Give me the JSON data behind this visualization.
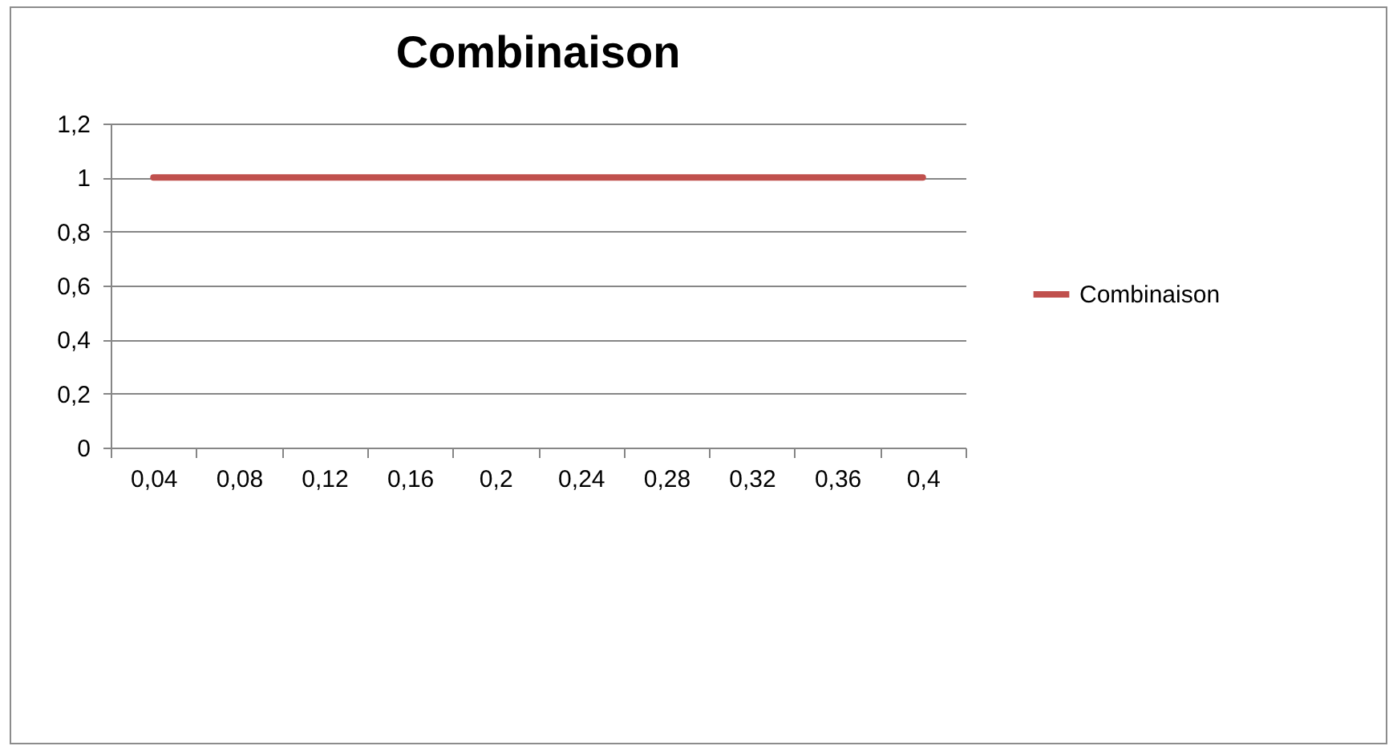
{
  "chart_data": {
    "type": "line",
    "title": "Combinaison",
    "categories": [
      "0,04",
      "0,08",
      "0,12",
      "0,16",
      "0,2",
      "0,24",
      "0,28",
      "0,32",
      "0,36",
      "0,4"
    ],
    "series": [
      {
        "name": "Combinaison",
        "color": "#c0504d",
        "values": [
          1,
          1,
          1,
          1,
          1,
          1,
          1,
          1,
          1,
          1
        ]
      }
    ],
    "ylim": [
      0,
      1.2
    ],
    "yticks": [
      0,
      {
        "value": 0.2,
        "label": "0,2"
      },
      {
        "value": 0.4,
        "label": "0,4"
      },
      {
        "value": 0.6,
        "label": "0,6"
      },
      {
        "value": 0.8,
        "label": "0,8"
      },
      1,
      {
        "value": 1.2,
        "label": "1,2"
      }
    ],
    "grid": "y",
    "legend": "right",
    "marker": "none",
    "line_style": "solid"
  }
}
